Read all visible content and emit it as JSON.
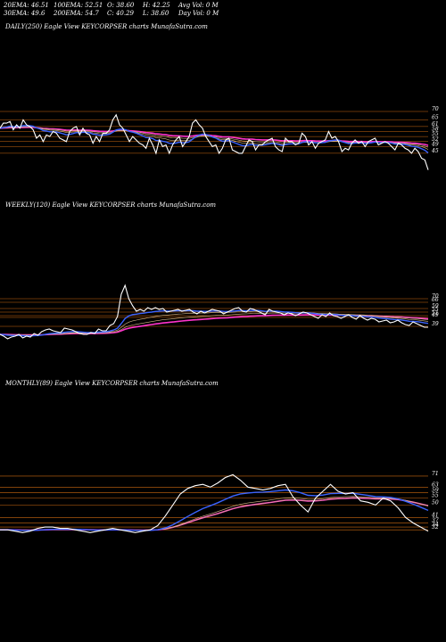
{
  "stats": {
    "ema20": "20EMA: 46.51",
    "ema100": "100EMA: 52.51",
    "open": "O: 38.60",
    "high": "H: 42.25",
    "avg_vol": "Avg Vol: 0  M",
    "ema30": "30EMA: 49.6",
    "ema200": "200EMA: 54.7",
    "close": "C: 40.29",
    "low": "L: 38.60",
    "day_vol": "Day Vol: 0  M"
  },
  "colors": {
    "background": "#000000",
    "price": "#ffffff",
    "ema_short": "#3a63ff",
    "ema_long": "#ff33cc",
    "guide": "#cc6a10",
    "ma_tan": "#d7b98a"
  },
  "chart_data": [
    {
      "type": "line",
      "title": "DAILY(250) Eagle  View  KEYCORPSER charts MunafaSutra.com",
      "y_ticks": [
        "70",
        "65",
        "61",
        "58",
        "55",
        "52",
        "49",
        "45"
      ],
      "series": [
        {
          "values": [
            60,
            63,
            63,
            64,
            59,
            62,
            60,
            65,
            62,
            61,
            59,
            54,
            56,
            52,
            56,
            55,
            58,
            57,
            54,
            53,
            52,
            58,
            60,
            61,
            56,
            60,
            57,
            56,
            51,
            55,
            52,
            57,
            57,
            59,
            65,
            68,
            62,
            60,
            56,
            52,
            55,
            53,
            51,
            50,
            48,
            54,
            50,
            45,
            53,
            49,
            50,
            45,
            50,
            53,
            55,
            49,
            52,
            55,
            63,
            65,
            62,
            60,
            55,
            52,
            49,
            50,
            45,
            48,
            53,
            54,
            47,
            46,
            45,
            45,
            49,
            53,
            52,
            47,
            50,
            50,
            52,
            53,
            54,
            49,
            47,
            46,
            54,
            52,
            52,
            50,
            51,
            57,
            55,
            50,
            52,
            48,
            51,
            52,
            53,
            58,
            54,
            55,
            52,
            46,
            48,
            47,
            51,
            53,
            51,
            52,
            49,
            52,
            53,
            54,
            50,
            51,
            52,
            51,
            49,
            47,
            51,
            50,
            48,
            47,
            45,
            48,
            46,
            42,
            41,
            35
          ]
        }
      ]
    },
    {
      "type": "line",
      "title": "WEEKLY(120) Eagle  View  KEYCORPSER charts MunafaSutra.com",
      "y_ticks": [
        "70",
        "66",
        "59",
        "55",
        "51",
        "49",
        "39"
      ],
      "series": [
        {
          "values": [
            30,
            28,
            25,
            27,
            28,
            30,
            26,
            28,
            27,
            31,
            29,
            33,
            35,
            36,
            34,
            33,
            32,
            37,
            36,
            35,
            33,
            31,
            30,
            30,
            32,
            31,
            36,
            34,
            34,
            40,
            42,
            50,
            75,
            85,
            70,
            62,
            56,
            58,
            56,
            60,
            58,
            60,
            58,
            59,
            55,
            56,
            57,
            58,
            56,
            57,
            58,
            55,
            53,
            56,
            54,
            56,
            58,
            57,
            56,
            53,
            55,
            57,
            59,
            60,
            56,
            55,
            59,
            58,
            56,
            54,
            52,
            58,
            56,
            55,
            54,
            52,
            54,
            53,
            51,
            53,
            55,
            54,
            52,
            50,
            48,
            52,
            50,
            54,
            51,
            50,
            48,
            50,
            52,
            49,
            47,
            51,
            48,
            46,
            48,
            47,
            44,
            45,
            46,
            43,
            44,
            46,
            43,
            41,
            40,
            44,
            42,
            40,
            38,
            38
          ]
        }
      ]
    },
    {
      "type": "line",
      "title": "MONTHLY(89) Eagle  View  KEYCORPSER charts MunafaSutra.com",
      "y_ticks": [
        "71",
        "63",
        "59",
        "55",
        "50",
        "41",
        "37",
        "34",
        "32"
      ],
      "series": [
        {
          "values": [
            32,
            32,
            31,
            30,
            31,
            33,
            34,
            34,
            33,
            33,
            32,
            31,
            30,
            31,
            32,
            33,
            32,
            31,
            30,
            31,
            32,
            35,
            42,
            50,
            58,
            62,
            64,
            65,
            63,
            66,
            70,
            72,
            68,
            63,
            62,
            61,
            62,
            64,
            65,
            56,
            50,
            45,
            55,
            60,
            65,
            60,
            58,
            59,
            53,
            52,
            50,
            55,
            53,
            48,
            41,
            37,
            34,
            31
          ]
        }
      ]
    }
  ]
}
